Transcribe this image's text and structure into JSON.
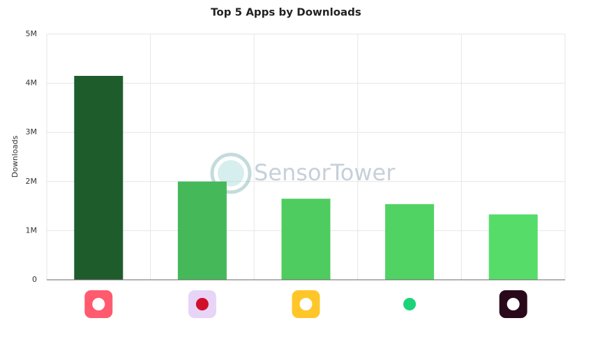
{
  "chart_data": {
    "type": "bar",
    "title": "Top 5 Apps by Downloads",
    "y_label": "Downloads",
    "watermark": "SensorTower",
    "categories": [
      null,
      null,
      null,
      null,
      null
    ],
    "values": [
      4150000,
      2000000,
      1650000,
      1540000,
      1330000
    ],
    "colors": [
      "#1f5c2c",
      "#45b95a",
      "#4ecc5f",
      "#50d363",
      "#56dd69"
    ],
    "ylim": [
      0,
      5000000
    ],
    "yticks": [
      0,
      {
        "value": 1000000,
        "label": "1M"
      },
      {
        "value": 2000000,
        "label": "2M"
      },
      {
        "value": 3000000,
        "label": "3M"
      },
      {
        "value": 4000000,
        "label": "4M"
      },
      {
        "value": 5000000,
        "label": "5M"
      }
    ],
    "grid": true
  }
}
